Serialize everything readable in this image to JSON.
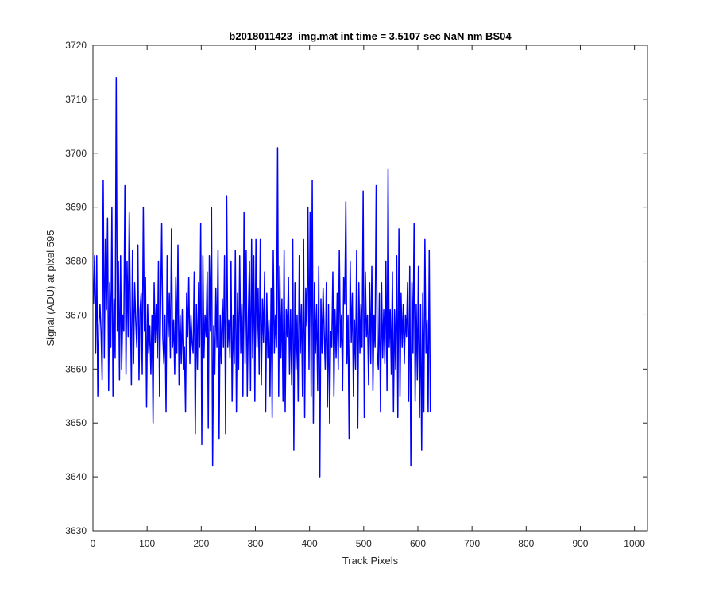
{
  "chart_data": {
    "type": "line",
    "title": "b2018011423_img.mat int time = 3.5107 sec  NaN nm BS04",
    "xlabel": "Track Pixels",
    "ylabel": "Signal (ADU) at pixel 595",
    "xlim": [
      0,
      1024
    ],
    "ylim": [
      3630,
      3720
    ],
    "x_ticks": [
      0,
      100,
      200,
      300,
      400,
      500,
      600,
      700,
      800,
      900,
      1000
    ],
    "y_ticks": [
      3630,
      3640,
      3650,
      3660,
      3670,
      3680,
      3690,
      3700,
      3710,
      3720
    ],
    "grid": false,
    "legend": "none",
    "series_color": "#0000ff",
    "x_start": 1,
    "x_step": 2,
    "series": [
      {
        "values": [
          3672,
          3681,
          3663,
          3681,
          3655,
          3668,
          3672,
          3667,
          3658,
          3695,
          3662,
          3684,
          3671,
          3688,
          3656,
          3676,
          3664,
          3690,
          3655,
          3673,
          3662,
          3714,
          3667,
          3680,
          3658,
          3681,
          3660,
          3670,
          3667,
          3694,
          3659,
          3680,
          3666,
          3689,
          3672,
          3657,
          3682,
          3661,
          3676,
          3669,
          3664,
          3683,
          3658,
          3671,
          3674,
          3659,
          3690,
          3667,
          3677,
          3653,
          3672,
          3663,
          3668,
          3659,
          3670,
          3650,
          3676,
          3665,
          3672,
          3662,
          3680,
          3655,
          3672,
          3687,
          3666,
          3661,
          3670,
          3652,
          3681,
          3666,
          3674,
          3662,
          3686,
          3664,
          3669,
          3659,
          3677,
          3663,
          3683,
          3657,
          3670,
          3661,
          3671,
          3660,
          3664,
          3652,
          3674,
          3666,
          3677,
          3661,
          3670,
          3665,
          3663,
          3678,
          3648,
          3672,
          3660,
          3676,
          3664,
          3687,
          3646,
          3681,
          3662,
          3670,
          3666,
          3678,
          3649,
          3681,
          3667,
          3690,
          3642,
          3668,
          3659,
          3675,
          3664,
          3682,
          3647,
          3670,
          3661,
          3673,
          3664,
          3681,
          3648,
          3692,
          3664,
          3669,
          3662,
          3680,
          3654,
          3670,
          3661,
          3682,
          3652,
          3674,
          3660,
          3681,
          3663,
          3672,
          3655,
          3689,
          3661,
          3682,
          3655,
          3670,
          3680,
          3656,
          3684,
          3662,
          3681,
          3654,
          3684,
          3664,
          3675,
          3659,
          3684,
          3657,
          3673,
          3665,
          3678,
          3652,
          3674,
          3662,
          3669,
          3655,
          3675,
          3651,
          3682,
          3663,
          3670,
          3664,
          3701,
          3655,
          3679,
          3662,
          3673,
          3654,
          3682,
          3652,
          3671,
          3666,
          3677,
          3659,
          3671,
          3657,
          3684,
          3645,
          3676,
          3660,
          3670,
          3654,
          3681,
          3663,
          3672,
          3655,
          3684,
          3651,
          3675,
          3668,
          3690,
          3660,
          3689,
          3655,
          3695,
          3650,
          3676,
          3663,
          3672,
          3656,
          3679,
          3640,
          3673,
          3663,
          3675,
          3667,
          3660,
          3676,
          3653,
          3672,
          3650,
          3667,
          3664,
          3678,
          3655,
          3671,
          3662,
          3674,
          3660,
          3682,
          3664,
          3670,
          3656,
          3677,
          3672,
          3691,
          3661,
          3670,
          3647,
          3680,
          3665,
          3674,
          3655,
          3669,
          3660,
          3682,
          3649,
          3676,
          3663,
          3672,
          3664,
          3693,
          3651,
          3678,
          3666,
          3670,
          3657,
          3676,
          3661,
          3679,
          3656,
          3670,
          3664,
          3694,
          3663,
          3660,
          3674,
          3652,
          3676,
          3662,
          3671,
          3661,
          3680,
          3656,
          3697,
          3664,
          3671,
          3659,
          3678,
          3652,
          3671,
          3660,
          3681,
          3651,
          3686,
          3655,
          3674,
          3664,
          3672,
          3661,
          3670,
          3666,
          3676,
          3654,
          3679,
          3642,
          3676,
          3663,
          3687,
          3654,
          3672,
          3658,
          3679,
          3651,
          3672,
          3645,
          3674,
          3652,
          3684,
          3663,
          3669,
          3652,
          3682,
          3652
        ]
      }
    ]
  }
}
